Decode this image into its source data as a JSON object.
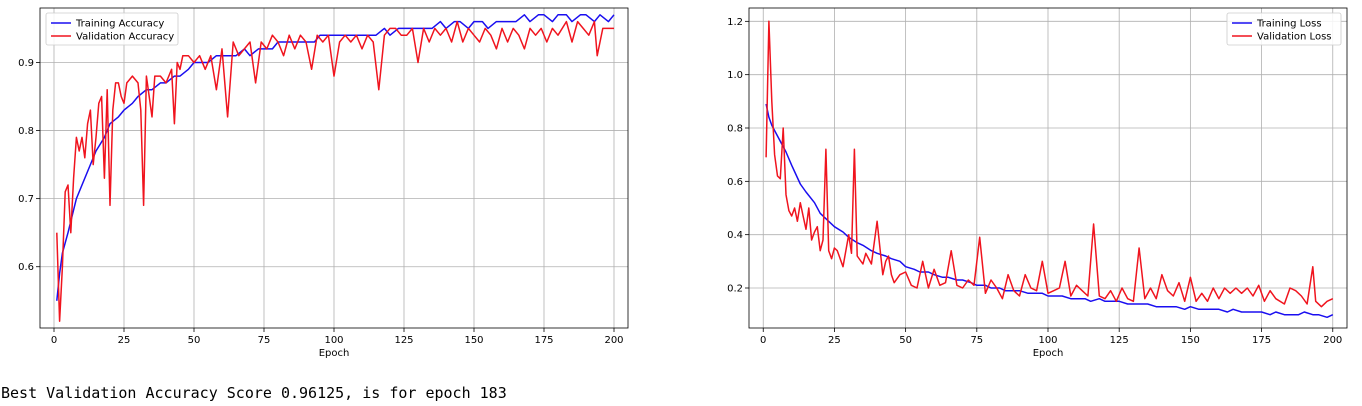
{
  "output_text": "Best Validation Accuracy Score 0.96125, is for epoch 183",
  "colors": {
    "training": "#1a0ef0",
    "validation": "#f0141e",
    "grid": "#b0b0b0"
  },
  "chart_data": [
    {
      "type": "line",
      "title": "",
      "xlabel": "Epoch",
      "ylabel": "",
      "xlim": [
        -5,
        205
      ],
      "ylim": [
        0.51,
        0.98
      ],
      "xticks": [
        0,
        25,
        50,
        75,
        100,
        125,
        150,
        175,
        200
      ],
      "yticks": [
        0.6,
        0.7,
        0.8,
        0.9
      ],
      "grid": true,
      "legend": "top-left",
      "series": [
        {
          "name": "Training Accuracy",
          "color": "#1a0ef0",
          "x": [
            1,
            2,
            3,
            5,
            8,
            10,
            13,
            15,
            18,
            20,
            23,
            25,
            28,
            30,
            33,
            35,
            38,
            40,
            43,
            45,
            48,
            50,
            53,
            55,
            58,
            60,
            63,
            65,
            68,
            70,
            73,
            75,
            78,
            80,
            83,
            85,
            88,
            90,
            93,
            95,
            98,
            100,
            103,
            105,
            108,
            110,
            113,
            115,
            118,
            120,
            123,
            125,
            128,
            130,
            133,
            135,
            138,
            140,
            143,
            145,
            148,
            150,
            153,
            155,
            158,
            160,
            163,
            165,
            168,
            170,
            173,
            175,
            178,
            180,
            183,
            185,
            188,
            190,
            193,
            195,
            198,
            200
          ],
          "y": [
            0.55,
            0.59,
            0.62,
            0.65,
            0.7,
            0.72,
            0.75,
            0.77,
            0.79,
            0.81,
            0.82,
            0.83,
            0.84,
            0.85,
            0.86,
            0.86,
            0.87,
            0.87,
            0.88,
            0.88,
            0.89,
            0.9,
            0.9,
            0.9,
            0.91,
            0.91,
            0.91,
            0.91,
            0.92,
            0.91,
            0.92,
            0.92,
            0.92,
            0.93,
            0.93,
            0.93,
            0.93,
            0.93,
            0.93,
            0.94,
            0.94,
            0.94,
            0.94,
            0.94,
            0.94,
            0.94,
            0.94,
            0.94,
            0.95,
            0.94,
            0.95,
            0.95,
            0.95,
            0.95,
            0.95,
            0.95,
            0.96,
            0.95,
            0.96,
            0.96,
            0.95,
            0.96,
            0.96,
            0.95,
            0.96,
            0.96,
            0.96,
            0.96,
            0.97,
            0.96,
            0.97,
            0.97,
            0.96,
            0.97,
            0.97,
            0.96,
            0.97,
            0.97,
            0.96,
            0.97,
            0.96,
            0.97
          ]
        },
        {
          "name": "Validation Accuracy",
          "color": "#f0141e",
          "x": [
            1,
            2,
            3,
            4,
            5,
            6,
            7,
            8,
            9,
            10,
            11,
            12,
            13,
            14,
            15,
            16,
            17,
            18,
            19,
            20,
            21,
            22,
            23,
            24,
            25,
            26,
            28,
            30,
            31,
            32,
            33,
            35,
            36,
            38,
            40,
            42,
            43,
            44,
            45,
            46,
            48,
            50,
            52,
            54,
            56,
            58,
            60,
            62,
            64,
            66,
            68,
            70,
            72,
            74,
            76,
            78,
            80,
            82,
            84,
            86,
            88,
            90,
            92,
            94,
            96,
            98,
            100,
            102,
            104,
            106,
            108,
            110,
            112,
            114,
            116,
            118,
            120,
            122,
            124,
            126,
            128,
            130,
            132,
            134,
            136,
            138,
            140,
            142,
            144,
            146,
            148,
            150,
            152,
            154,
            156,
            158,
            160,
            162,
            164,
            166,
            168,
            170,
            172,
            174,
            176,
            178,
            180,
            183,
            185,
            187,
            189,
            191,
            193,
            194,
            196,
            198,
            200
          ],
          "y": [
            0.65,
            0.52,
            0.6,
            0.71,
            0.72,
            0.65,
            0.73,
            0.79,
            0.77,
            0.79,
            0.76,
            0.81,
            0.83,
            0.75,
            0.79,
            0.84,
            0.85,
            0.73,
            0.86,
            0.69,
            0.83,
            0.87,
            0.87,
            0.85,
            0.84,
            0.87,
            0.88,
            0.87,
            0.83,
            0.69,
            0.88,
            0.82,
            0.88,
            0.88,
            0.87,
            0.89,
            0.81,
            0.9,
            0.89,
            0.91,
            0.91,
            0.9,
            0.91,
            0.89,
            0.91,
            0.86,
            0.92,
            0.82,
            0.93,
            0.91,
            0.92,
            0.93,
            0.87,
            0.93,
            0.92,
            0.94,
            0.93,
            0.91,
            0.94,
            0.92,
            0.94,
            0.93,
            0.89,
            0.94,
            0.93,
            0.94,
            0.88,
            0.93,
            0.94,
            0.93,
            0.94,
            0.92,
            0.94,
            0.93,
            0.86,
            0.94,
            0.95,
            0.95,
            0.94,
            0.94,
            0.95,
            0.9,
            0.95,
            0.93,
            0.95,
            0.94,
            0.95,
            0.93,
            0.96,
            0.93,
            0.95,
            0.94,
            0.93,
            0.95,
            0.94,
            0.92,
            0.95,
            0.93,
            0.95,
            0.94,
            0.92,
            0.95,
            0.94,
            0.95,
            0.93,
            0.95,
            0.94,
            0.96,
            0.93,
            0.96,
            0.95,
            0.94,
            0.96,
            0.91,
            0.95,
            0.95,
            0.95
          ]
        }
      ]
    },
    {
      "type": "line",
      "title": "",
      "xlabel": "Epoch",
      "ylabel": "",
      "xlim": [
        -5,
        205
      ],
      "ylim": [
        0.05,
        1.25
      ],
      "xticks": [
        0,
        25,
        50,
        75,
        100,
        125,
        150,
        175,
        200
      ],
      "yticks": [
        0.2,
        0.4,
        0.6,
        0.8,
        1.0,
        1.2
      ],
      "grid": true,
      "legend": "top-right",
      "series": [
        {
          "name": "Training Loss",
          "color": "#1a0ef0",
          "x": [
            1,
            2,
            3,
            5,
            8,
            10,
            13,
            15,
            18,
            20,
            23,
            25,
            28,
            30,
            33,
            35,
            38,
            40,
            43,
            45,
            48,
            50,
            53,
            55,
            58,
            60,
            63,
            65,
            68,
            70,
            73,
            75,
            78,
            80,
            83,
            85,
            88,
            90,
            93,
            95,
            98,
            100,
            103,
            105,
            108,
            110,
            113,
            115,
            118,
            120,
            123,
            125,
            128,
            130,
            133,
            135,
            138,
            140,
            143,
            145,
            148,
            150,
            153,
            155,
            158,
            160,
            163,
            165,
            168,
            170,
            173,
            175,
            178,
            180,
            183,
            185,
            188,
            190,
            193,
            195,
            198,
            200
          ],
          "y": [
            0.89,
            0.84,
            0.81,
            0.77,
            0.71,
            0.66,
            0.59,
            0.56,
            0.52,
            0.48,
            0.45,
            0.43,
            0.41,
            0.39,
            0.37,
            0.36,
            0.34,
            0.33,
            0.32,
            0.31,
            0.3,
            0.28,
            0.27,
            0.26,
            0.26,
            0.25,
            0.24,
            0.24,
            0.23,
            0.23,
            0.22,
            0.21,
            0.21,
            0.2,
            0.2,
            0.19,
            0.19,
            0.19,
            0.18,
            0.18,
            0.18,
            0.17,
            0.17,
            0.17,
            0.16,
            0.16,
            0.16,
            0.15,
            0.16,
            0.15,
            0.15,
            0.15,
            0.14,
            0.14,
            0.14,
            0.14,
            0.13,
            0.13,
            0.13,
            0.13,
            0.12,
            0.13,
            0.12,
            0.12,
            0.12,
            0.12,
            0.11,
            0.12,
            0.11,
            0.11,
            0.11,
            0.11,
            0.1,
            0.11,
            0.1,
            0.1,
            0.1,
            0.11,
            0.1,
            0.1,
            0.09,
            0.1
          ]
        },
        {
          "name": "Validation Loss",
          "color": "#f0141e",
          "x": [
            1,
            2,
            3,
            4,
            5,
            6,
            7,
            8,
            9,
            10,
            11,
            12,
            13,
            14,
            15,
            16,
            17,
            18,
            19,
            20,
            21,
            22,
            23,
            24,
            25,
            26,
            28,
            30,
            31,
            32,
            33,
            35,
            36,
            38,
            40,
            42,
            43,
            44,
            45,
            46,
            48,
            50,
            52,
            54,
            56,
            58,
            60,
            62,
            64,
            66,
            68,
            70,
            72,
            74,
            76,
            78,
            80,
            82,
            84,
            86,
            88,
            90,
            92,
            94,
            96,
            98,
            100,
            102,
            104,
            106,
            108,
            110,
            112,
            114,
            116,
            118,
            120,
            122,
            124,
            126,
            128,
            130,
            132,
            134,
            136,
            138,
            140,
            142,
            144,
            146,
            148,
            150,
            152,
            154,
            156,
            158,
            160,
            162,
            164,
            166,
            168,
            170,
            172,
            174,
            176,
            178,
            180,
            183,
            185,
            187,
            189,
            191,
            193,
            194,
            196,
            198,
            200
          ],
          "y": [
            0.69,
            1.2,
            0.9,
            0.7,
            0.62,
            0.61,
            0.8,
            0.55,
            0.49,
            0.47,
            0.5,
            0.45,
            0.52,
            0.47,
            0.42,
            0.5,
            0.38,
            0.41,
            0.43,
            0.34,
            0.38,
            0.72,
            0.34,
            0.31,
            0.35,
            0.34,
            0.28,
            0.4,
            0.33,
            0.72,
            0.32,
            0.29,
            0.33,
            0.29,
            0.45,
            0.25,
            0.3,
            0.32,
            0.25,
            0.22,
            0.25,
            0.26,
            0.21,
            0.2,
            0.3,
            0.2,
            0.27,
            0.21,
            0.22,
            0.34,
            0.21,
            0.2,
            0.23,
            0.21,
            0.39,
            0.18,
            0.23,
            0.2,
            0.16,
            0.25,
            0.19,
            0.17,
            0.25,
            0.2,
            0.19,
            0.3,
            0.18,
            0.19,
            0.2,
            0.3,
            0.17,
            0.21,
            0.19,
            0.17,
            0.44,
            0.17,
            0.16,
            0.19,
            0.15,
            0.2,
            0.16,
            0.15,
            0.35,
            0.16,
            0.2,
            0.16,
            0.25,
            0.19,
            0.17,
            0.22,
            0.15,
            0.24,
            0.15,
            0.18,
            0.15,
            0.2,
            0.16,
            0.2,
            0.18,
            0.2,
            0.18,
            0.2,
            0.17,
            0.21,
            0.15,
            0.19,
            0.16,
            0.14,
            0.2,
            0.19,
            0.17,
            0.14,
            0.28,
            0.15,
            0.13,
            0.15,
            0.16
          ]
        }
      ]
    }
  ]
}
